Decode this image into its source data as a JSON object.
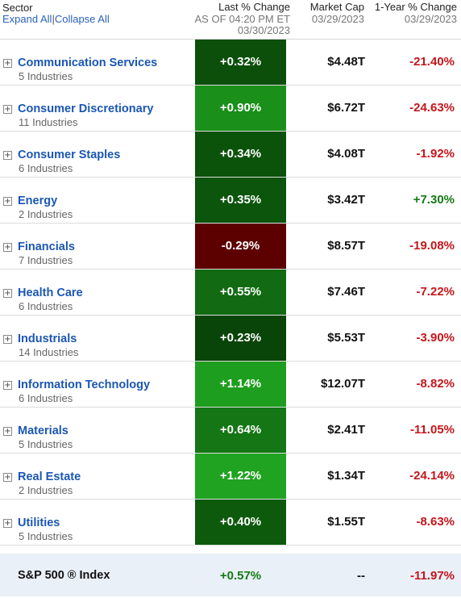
{
  "header": {
    "sector_label": "Sector",
    "expand_all": "Expand All",
    "separator": "|",
    "collapse_all": "Collapse All",
    "last_change_label": "Last % Change",
    "last_change_asof": "AS OF 04:20 PM ET",
    "last_change_date": "03/30/2023",
    "market_cap_label": "Market Cap",
    "market_cap_date": "03/29/2023",
    "year_change_label": "1-Year % Change",
    "year_change_date": "03/29/2023"
  },
  "colors": {
    "link": "#1b56b3",
    "negative_text": "#c4161c",
    "positive_text": "#147a14",
    "index_row_bg": "#e9f0f8"
  },
  "expand_icon": "plus-box-icon",
  "expand_symbol": "+",
  "sectors": [
    {
      "name": "Communication Services",
      "industries": "5 Industries",
      "change": "+0.32%",
      "change_value": 0.32,
      "market_cap": "$4.48T",
      "year_change": "-21.40%",
      "cell_color": "#0b4f0b"
    },
    {
      "name": "Consumer Discretionary",
      "industries": "11 Industries",
      "change": "+0.90%",
      "change_value": 0.9,
      "market_cap": "$6.72T",
      "year_change": "-24.63%",
      "cell_color": "#1a8f1a"
    },
    {
      "name": "Consumer Staples",
      "industries": "6 Industries",
      "change": "+0.34%",
      "change_value": 0.34,
      "market_cap": "$4.08T",
      "year_change": "-1.92%",
      "cell_color": "#0b520b"
    },
    {
      "name": "Energy",
      "industries": "2 Industries",
      "change": "+0.35%",
      "change_value": 0.35,
      "market_cap": "$3.42T",
      "year_change": "+7.30%",
      "cell_color": "#0c550c"
    },
    {
      "name": "Financials",
      "industries": "7 Industries",
      "change": "-0.29%",
      "change_value": -0.29,
      "market_cap": "$8.57T",
      "year_change": "-19.08%",
      "cell_color": "#5c0000"
    },
    {
      "name": "Health Care",
      "industries": "6 Industries",
      "change": "+0.55%",
      "change_value": 0.55,
      "market_cap": "$7.46T",
      "year_change": "-7.22%",
      "cell_color": "#126b12"
    },
    {
      "name": "Industrials",
      "industries": "14 Industries",
      "change": "+0.23%",
      "change_value": 0.23,
      "market_cap": "$5.53T",
      "year_change": "-3.90%",
      "cell_color": "#094409"
    },
    {
      "name": "Information Technology",
      "industries": "6 Industries",
      "change": "+1.14%",
      "change_value": 1.14,
      "market_cap": "$12.07T",
      "year_change": "-8.82%",
      "cell_color": "#1e9e1e"
    },
    {
      "name": "Materials",
      "industries": "5 Industries",
      "change": "+0.64%",
      "change_value": 0.64,
      "market_cap": "$2.41T",
      "year_change": "-11.05%",
      "cell_color": "#147614"
    },
    {
      "name": "Real Estate",
      "industries": "2 Industries",
      "change": "+1.22%",
      "change_value": 1.22,
      "market_cap": "$1.34T",
      "year_change": "-24.14%",
      "cell_color": "#20a320"
    },
    {
      "name": "Utilities",
      "industries": "5 Industries",
      "change": "+0.40%",
      "change_value": 0.4,
      "market_cap": "$1.55T",
      "year_change": "-8.63%",
      "cell_color": "#0d5a0d"
    }
  ],
  "index": {
    "name": "S&P 500 ® Index",
    "change": "+0.57%",
    "market_cap": "--",
    "year_change": "-11.97%"
  }
}
